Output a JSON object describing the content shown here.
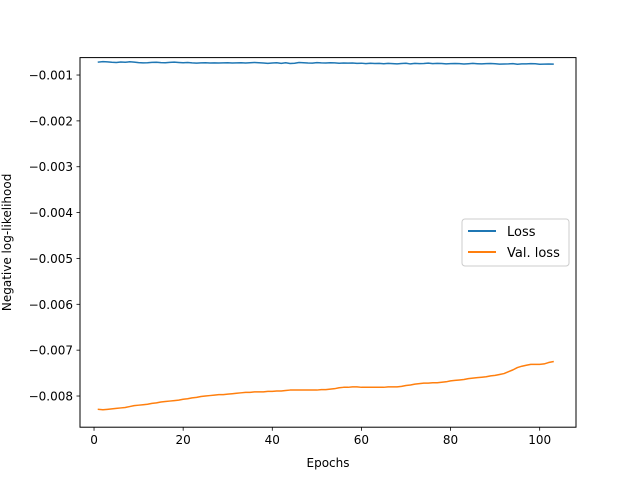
{
  "chart_data": {
    "type": "line",
    "title": "",
    "xlabel": "Epochs",
    "ylabel": "Negative log-likelihood",
    "xlim": [
      -3.15,
      108.15
    ],
    "ylim": [
      -0.00868,
      -0.00062
    ],
    "xticks": [
      0,
      20,
      40,
      60,
      80,
      100
    ],
    "yticks": [
      -0.001,
      -0.002,
      -0.003,
      -0.004,
      -0.005,
      -0.006,
      -0.007,
      -0.008
    ],
    "xtick_labels": [
      "0",
      "20",
      "40",
      "60",
      "80",
      "100"
    ],
    "ytick_labels": [
      "−0.001",
      "−0.002",
      "−0.003",
      "−0.004",
      "−0.005",
      "−0.006",
      "−0.007",
      "−0.008"
    ],
    "grid": false,
    "legend": "center-right",
    "series": [
      {
        "name": "Loss",
        "color": "#1f77b4",
        "x": [
          1,
          2,
          3,
          4,
          5,
          6,
          7,
          8,
          9,
          10,
          11,
          12,
          13,
          14,
          15,
          16,
          17,
          18,
          19,
          20,
          21,
          22,
          23,
          24,
          25,
          26,
          27,
          28,
          29,
          30,
          31,
          32,
          33,
          34,
          35,
          36,
          37,
          38,
          39,
          40,
          41,
          42,
          43,
          44,
          45,
          46,
          47,
          48,
          49,
          50,
          51,
          52,
          53,
          54,
          55,
          56,
          57,
          58,
          59,
          60,
          61,
          62,
          63,
          64,
          65,
          66,
          67,
          68,
          69,
          70,
          71,
          72,
          73,
          74,
          75,
          76,
          77,
          78,
          79,
          80,
          81,
          82,
          83,
          84,
          85,
          86,
          87,
          88,
          89,
          90,
          91,
          92,
          93,
          94,
          95,
          96,
          97,
          98,
          99,
          100,
          101,
          102,
          103
        ],
        "y": [
          -0.000718,
          -0.000709,
          -0.000713,
          -0.000722,
          -0.000728,
          -0.000716,
          -0.000722,
          -0.000711,
          -0.000719,
          -0.000729,
          -0.000735,
          -0.000731,
          -0.000725,
          -0.000721,
          -0.000729,
          -0.000733,
          -0.000724,
          -0.000719,
          -0.000726,
          -0.000731,
          -0.000728,
          -0.000736,
          -0.000741,
          -0.000735,
          -0.000731,
          -0.000737,
          -0.000734,
          -0.000739,
          -0.000736,
          -0.000732,
          -0.000738,
          -0.000735,
          -0.000731,
          -0.000737,
          -0.000733,
          -0.000727,
          -0.000732,
          -0.000739,
          -0.000746,
          -0.000738,
          -0.000732,
          -0.000745,
          -0.000733,
          -0.000749,
          -0.000744,
          -0.000728,
          -0.000732,
          -0.000739,
          -0.000741,
          -0.000729,
          -0.000736,
          -0.000738,
          -0.000731,
          -0.000735,
          -0.000743,
          -0.000737,
          -0.000741,
          -0.000739,
          -0.000745,
          -0.000742,
          -0.000751,
          -0.000743,
          -0.000749,
          -0.000746,
          -0.000753,
          -0.000747,
          -0.000751,
          -0.000756,
          -0.000749,
          -0.000744,
          -0.000758,
          -0.000747,
          -0.000752,
          -0.000748,
          -0.000741,
          -0.000752,
          -0.000746,
          -0.000748,
          -0.000757,
          -0.000751,
          -0.000749,
          -0.000752,
          -0.000759,
          -0.000754,
          -0.000747,
          -0.000753,
          -0.000758,
          -0.000751,
          -0.000748,
          -0.000754,
          -0.000763,
          -0.000759,
          -0.000757,
          -0.000752,
          -0.000765,
          -0.000758,
          -0.000756,
          -0.000752,
          -0.000755,
          -0.000766,
          -0.000762,
          -0.000759,
          -0.000761
        ]
      },
      {
        "name": "Val. loss",
        "color": "#ff7f0e",
        "x": [
          1,
          2,
          3,
          4,
          5,
          6,
          7,
          8,
          9,
          10,
          11,
          12,
          13,
          14,
          15,
          16,
          17,
          18,
          19,
          20,
          21,
          22,
          23,
          24,
          25,
          26,
          27,
          28,
          29,
          30,
          31,
          32,
          33,
          34,
          35,
          36,
          37,
          38,
          39,
          40,
          41,
          42,
          43,
          44,
          45,
          46,
          47,
          48,
          49,
          50,
          51,
          52,
          53,
          54,
          55,
          56,
          57,
          58,
          59,
          60,
          61,
          62,
          63,
          64,
          65,
          66,
          67,
          68,
          69,
          70,
          71,
          72,
          73,
          74,
          75,
          76,
          77,
          78,
          79,
          80,
          81,
          82,
          83,
          84,
          85,
          86,
          87,
          88,
          89,
          90,
          91,
          92,
          93,
          94,
          95,
          96,
          97,
          98,
          99,
          100,
          101,
          102,
          103
        ],
        "y": [
          -0.00829,
          -0.0083,
          -0.00829,
          -0.00828,
          -0.00827,
          -0.00826,
          -0.00825,
          -0.00823,
          -0.00821,
          -0.0082,
          -0.00819,
          -0.00818,
          -0.00816,
          -0.00815,
          -0.00813,
          -0.00812,
          -0.00811,
          -0.0081,
          -0.00809,
          -0.00807,
          -0.00806,
          -0.00804,
          -0.00803,
          -0.00801,
          -0.008,
          -0.00799,
          -0.00798,
          -0.00797,
          -0.00797,
          -0.00796,
          -0.00795,
          -0.00794,
          -0.00793,
          -0.00792,
          -0.00792,
          -0.00791,
          -0.00791,
          -0.00791,
          -0.0079,
          -0.0079,
          -0.00789,
          -0.00789,
          -0.00788,
          -0.00787,
          -0.00787,
          -0.00787,
          -0.00787,
          -0.00787,
          -0.00787,
          -0.00787,
          -0.00786,
          -0.00786,
          -0.00785,
          -0.00784,
          -0.00782,
          -0.00781,
          -0.00781,
          -0.0078,
          -0.0078,
          -0.00781,
          -0.00781,
          -0.00781,
          -0.00781,
          -0.00781,
          -0.00781,
          -0.0078,
          -0.0078,
          -0.0078,
          -0.00779,
          -0.00777,
          -0.00776,
          -0.00774,
          -0.00773,
          -0.00772,
          -0.00772,
          -0.00771,
          -0.00771,
          -0.0077,
          -0.00769,
          -0.00767,
          -0.00766,
          -0.00765,
          -0.00764,
          -0.00762,
          -0.00761,
          -0.0076,
          -0.00759,
          -0.00758,
          -0.00756,
          -0.00755,
          -0.00753,
          -0.00751,
          -0.00747,
          -0.00743,
          -0.00738,
          -0.00735,
          -0.00733,
          -0.00731,
          -0.00731,
          -0.00731,
          -0.0073,
          -0.00727,
          -0.00725
        ]
      }
    ]
  }
}
